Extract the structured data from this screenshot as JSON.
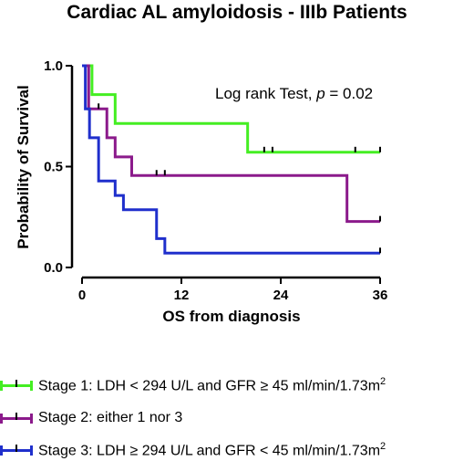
{
  "chart_data": {
    "type": "line",
    "subtype": "kaplan-meier",
    "title": "Cardiac AL amyloidosis - IIIb Patients",
    "xlabel": "OS from diagnosis",
    "ylabel": "Probability of Survival",
    "xlim": [
      0,
      36
    ],
    "ylim": [
      0,
      1.0
    ],
    "xticks": [
      0,
      12,
      24,
      36
    ],
    "yticks": [
      0.0,
      0.5,
      1.0
    ],
    "xtick_labels": [
      "0",
      "12",
      "24",
      "36"
    ],
    "ytick_labels": [
      "0.0",
      "0.5",
      "1.0"
    ],
    "grid": false,
    "legend_position": "bottom",
    "annotation": {
      "text_prefix": "Log rank Test, ",
      "p_symbol": "p",
      "text_suffix": " = 0.02"
    },
    "series": [
      {
        "name": "Stage 1: LDH < 294 U/L and GFR ≥ 45 ml/min/1.73m",
        "name_sup": "2",
        "color": "#44ee22",
        "steps": [
          [
            0,
            1.0
          ],
          [
            1.2,
            0.857
          ],
          [
            4,
            0.714
          ],
          [
            20,
            0.571
          ],
          [
            36,
            0.571
          ]
        ],
        "censor": [
          22,
          23,
          33,
          36
        ]
      },
      {
        "name": "Stage 2: either 1 nor 3",
        "name_sup": "",
        "color": "#8b1a8b",
        "steps": [
          [
            0,
            1.0
          ],
          [
            0.8,
            0.786
          ],
          [
            3,
            0.643
          ],
          [
            4,
            0.548
          ],
          [
            6,
            0.456
          ],
          [
            32,
            0.228
          ],
          [
            36,
            0.228
          ]
        ],
        "censor": [
          2,
          9,
          10,
          36
        ]
      },
      {
        "name": "Stage 3: LDH ≥  294 U/L and GFR < 45 ml/min/1.73m",
        "name_sup": "2",
        "color": "#1f2fcc",
        "steps": [
          [
            0,
            1.0
          ],
          [
            0.4,
            0.786
          ],
          [
            0.9,
            0.643
          ],
          [
            2,
            0.429
          ],
          [
            4,
            0.357
          ],
          [
            5,
            0.286
          ],
          [
            9,
            0.143
          ],
          [
            10,
            0.071
          ],
          [
            36,
            0.071
          ]
        ],
        "censor": [
          36
        ]
      }
    ]
  }
}
